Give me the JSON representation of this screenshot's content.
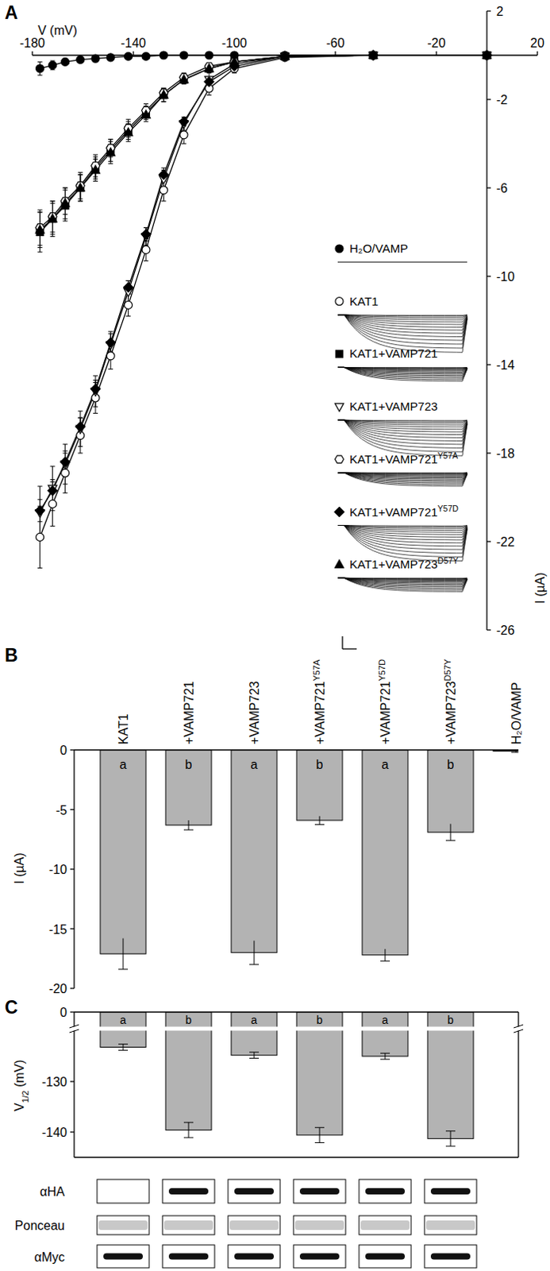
{
  "chart_data": [
    {
      "type": "line",
      "title": "A",
      "x_label": "V (mV)",
      "y_label": "I (µA)",
      "x": [
        -177,
        -172,
        -167,
        -161,
        -155,
        -149,
        -142,
        -135,
        -128,
        -120,
        -110,
        -100,
        -80,
        -45,
        0
      ],
      "xlim": [
        -180,
        20
      ],
      "xticks": [
        -180,
        -140,
        -100,
        -60,
        -20,
        20
      ],
      "ylim": [
        -26,
        2
      ],
      "yticks": [
        2,
        -2,
        -6,
        -10,
        -14,
        -18,
        -22,
        -26
      ],
      "legend": "right",
      "line_style": "solid",
      "series": [
        {
          "name": "H₂O/VAMP",
          "color": "#000000",
          "marker": "filled-circle",
          "values": [
            -0.6,
            -0.45,
            -0.3,
            -0.2,
            -0.15,
            -0.1,
            -0.05,
            -0.05,
            0,
            0,
            0,
            0,
            0,
            0,
            0
          ],
          "errors": [
            0.3,
            0.2,
            0.15,
            0.1,
            0.1,
            0.05,
            0.05,
            0,
            0,
            0,
            0,
            0,
            0,
            0,
            0
          ]
        },
        {
          "name": "KAT1",
          "color": "#000000",
          "marker": "open-circle",
          "values": [
            -21.8,
            -20.3,
            -18.9,
            -17.2,
            -15.5,
            -13.6,
            -11.3,
            -8.8,
            -6.1,
            -3.6,
            -1.5,
            -0.6,
            -0.1,
            0,
            0
          ],
          "errors": [
            1.4,
            1.0,
            0.9,
            0.8,
            0.7,
            0.6,
            0.5,
            0.5,
            0.5,
            0.4,
            0.3,
            0.2,
            0.05,
            0,
            0
          ]
        },
        {
          "name": "KAT1+VAMP721",
          "color": "#000000",
          "marker": "filled-square",
          "values": [
            -8.0,
            -7.4,
            -6.8,
            -6.0,
            -5.1,
            -4.3,
            -3.4,
            -2.6,
            -1.8,
            -1.1,
            -0.6,
            -0.3,
            -0.05,
            0,
            0
          ],
          "errors": [
            0.9,
            0.8,
            0.7,
            0.6,
            0.5,
            0.5,
            0.4,
            0.3,
            0.3,
            0.2,
            0.1,
            0.1,
            0,
            0,
            0
          ]
        },
        {
          "name": "KAT1+VAMP723",
          "color": "#000000",
          "marker": "open-triangle-down",
          "values": [
            -20.7,
            -19.6,
            -18.5,
            -16.9,
            -15.2,
            -13.1,
            -10.7,
            -8.2,
            -5.6,
            -3.1,
            -1.1,
            -0.4,
            -0.05,
            0,
            0
          ],
          "errors": [
            1.2,
            1.0,
            0.9,
            0.8,
            0.7,
            0.6,
            0.5,
            0.4,
            0.4,
            0.3,
            0.3,
            0.2,
            0.05,
            0,
            0
          ]
        },
        {
          "name": "KAT1+VAMP721Y57A",
          "color": "#000000",
          "marker": "open-hexagon",
          "values": [
            -7.8,
            -7.3,
            -6.6,
            -5.9,
            -5.0,
            -4.2,
            -3.3,
            -2.5,
            -1.7,
            -1.0,
            -0.5,
            -0.3,
            -0.05,
            0,
            0
          ],
          "errors": [
            0.8,
            0.7,
            0.6,
            0.6,
            0.5,
            0.4,
            0.4,
            0.3,
            0.2,
            0.2,
            0.1,
            0.1,
            0,
            0,
            0
          ]
        },
        {
          "name": "KAT1+VAMP721Y57D",
          "color": "#000000",
          "marker": "filled-diamond",
          "values": [
            -20.6,
            -19.7,
            -18.4,
            -16.8,
            -15.1,
            -13.0,
            -10.5,
            -8.1,
            -5.4,
            -3.0,
            -1.2,
            -0.5,
            -0.05,
            0,
            0
          ],
          "errors": [
            0.5,
            0.5,
            0.5,
            0.4,
            0.4,
            0.4,
            0.3,
            0.3,
            0.3,
            0.2,
            0.2,
            0.1,
            0.05,
            0,
            0
          ]
        },
        {
          "name": "KAT1+VAMP723D57Y",
          "color": "#000000",
          "marker": "filled-triangle-up",
          "values": [
            -7.9,
            -7.4,
            -6.7,
            -6.0,
            -5.2,
            -4.4,
            -3.5,
            -2.7,
            -1.8,
            -1.1,
            -0.6,
            -0.3,
            -0.05,
            0,
            0
          ],
          "errors": [
            0.8,
            0.7,
            0.7,
            0.6,
            0.5,
            0.5,
            0.4,
            0.3,
            0.3,
            0.2,
            0.1,
            0.1,
            0,
            0,
            0
          ]
        }
      ]
    },
    {
      "type": "bar",
      "title": "B",
      "y_label": "I (µA)",
      "categories": [
        "KAT1",
        "+VAMP721",
        "+VAMP723",
        "+VAMP721Y57A",
        "+VAMP721Y57D",
        "+VAMP723D57Y",
        "H₂O/VAMP"
      ],
      "values": [
        -17.1,
        -6.3,
        -17.0,
        -5.9,
        -17.2,
        -6.9,
        -0.1
      ],
      "errors": [
        1.3,
        0.4,
        1.0,
        0.35,
        0.5,
        0.7,
        0.1
      ],
      "annotations": [
        "a",
        "b",
        "a",
        "b",
        "a",
        "b",
        null
      ],
      "color": "#b3b3b3",
      "ylim": [
        -20,
        0
      ],
      "yticks": [
        -20,
        -15,
        -10,
        -5,
        0
      ]
    },
    {
      "type": "bar",
      "title": "C",
      "y_label": "V1/2 (mV)",
      "categories": [
        "KAT1",
        "+VAMP721",
        "+VAMP723",
        "+VAMP721Y57A",
        "+VAMP721Y57D",
        "+VAMP723D57Y"
      ],
      "values": [
        -123.2,
        -139.6,
        -124.8,
        -140.6,
        -125.0,
        -141.3
      ],
      "errors": [
        0.6,
        1.5,
        0.6,
        1.5,
        0.6,
        1.5
      ],
      "annotations": [
        "a",
        "b",
        "a",
        "b",
        "a",
        "b"
      ],
      "color": "#b3b3b3",
      "ylim": [
        -145,
        0
      ],
      "yticks": [
        0,
        -130,
        -140
      ],
      "y_break": [
        -120,
        -2
      ],
      "blots": {
        "labels": [
          "αHA",
          "Ponceau",
          "αMyc"
        ],
        "bands": [
          [
            0,
            1,
            1,
            1,
            1,
            1
          ],
          [
            1,
            1,
            1,
            1,
            1,
            1
          ],
          [
            1,
            1,
            1,
            1,
            1,
            1
          ]
        ]
      }
    }
  ]
}
